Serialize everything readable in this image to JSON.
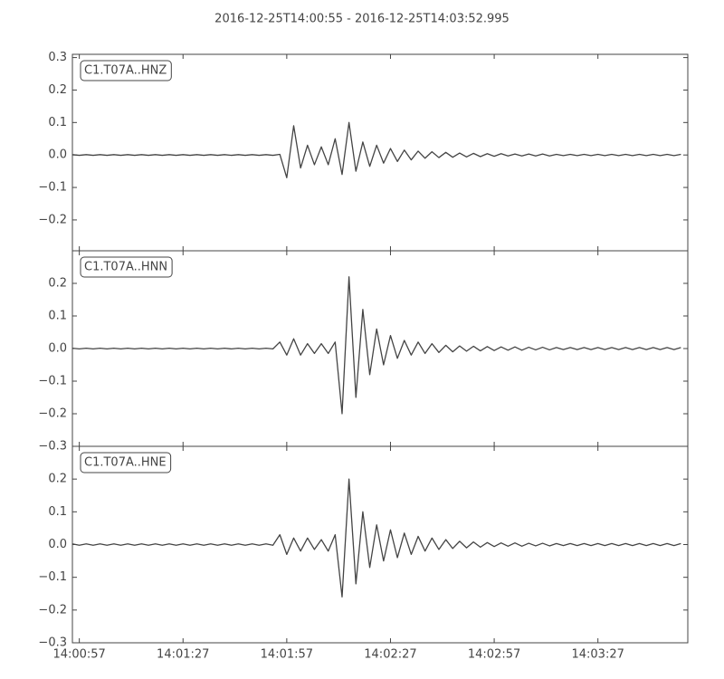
{
  "chart_data": {
    "type": "line",
    "title": "2016-12-25T14:00:55  -  2016-12-25T14:03:52.995",
    "x": [
      "14:00:55",
      "14:00:57",
      "14:00:59",
      "14:01:01",
      "14:01:03",
      "14:01:05",
      "14:01:07",
      "14:01:09",
      "14:01:11",
      "14:01:13",
      "14:01:15",
      "14:01:17",
      "14:01:19",
      "14:01:21",
      "14:01:23",
      "14:01:25",
      "14:01:27",
      "14:01:29",
      "14:01:31",
      "14:01:33",
      "14:01:35",
      "14:01:37",
      "14:01:39",
      "14:01:41",
      "14:01:43",
      "14:01:45",
      "14:01:47",
      "14:01:49",
      "14:01:51",
      "14:01:53",
      "14:01:55",
      "14:01:57",
      "14:01:59",
      "14:02:01",
      "14:02:03",
      "14:02:05",
      "14:02:07",
      "14:02:09",
      "14:02:11",
      "14:02:13",
      "14:02:15",
      "14:02:17",
      "14:02:19",
      "14:02:21",
      "14:02:23",
      "14:02:25",
      "14:02:27",
      "14:02:29",
      "14:02:31",
      "14:02:33",
      "14:02:35",
      "14:02:37",
      "14:02:39",
      "14:02:41",
      "14:02:43",
      "14:02:45",
      "14:02:47",
      "14:02:49",
      "14:02:51",
      "14:02:53",
      "14:02:55",
      "14:02:57",
      "14:02:59",
      "14:03:01",
      "14:03:03",
      "14:03:05",
      "14:03:07",
      "14:03:09",
      "14:03:11",
      "14:03:13",
      "14:03:15",
      "14:03:17",
      "14:03:19",
      "14:03:21",
      "14:03:23",
      "14:03:25",
      "14:03:27",
      "14:03:29",
      "14:03:31",
      "14:03:33",
      "14:03:35",
      "14:03:37",
      "14:03:39",
      "14:03:41",
      "14:03:43",
      "14:03:45",
      "14:03:47",
      "14:03:49",
      "14:03:51"
    ],
    "xlim": [
      "14:00:55",
      "14:03:52.995"
    ],
    "xticks": [
      "14:00:57",
      "14:01:27",
      "14:01:57",
      "14:02:27",
      "14:02:57",
      "14:03:27"
    ],
    "series": [
      {
        "name": "C1.T07A..HNZ",
        "color": "#444444",
        "ylim": [
          -0.295,
          0.31
        ],
        "yticks": [
          {
            "value": -0.2,
            "label": "−0.2"
          },
          {
            "value": -0.1,
            "label": "−0.1"
          },
          {
            "value": 0,
            "label": "0.0"
          },
          {
            "value": 0.1,
            "label": "0.1"
          },
          {
            "value": 0.2,
            "label": "0.2"
          },
          {
            "value": 0.3,
            "label": "0.3"
          }
        ],
        "values": [
          0.001,
          -0.001,
          0.001,
          -0.001,
          0.001,
          -0.001,
          0.001,
          -0.001,
          0.001,
          -0.001,
          0.001,
          -0.001,
          0.001,
          -0.001,
          0.001,
          -0.001,
          0.001,
          -0.001,
          0.001,
          -0.001,
          0.001,
          -0.001,
          0.001,
          -0.001,
          0.001,
          -0.001,
          0.001,
          -0.001,
          0.001,
          -0.001,
          0.002,
          -0.07,
          0.09,
          -0.04,
          0.03,
          -0.03,
          0.025,
          -0.03,
          0.05,
          -0.06,
          0.1,
          -0.05,
          0.04,
          -0.035,
          0.03,
          -0.025,
          0.02,
          -0.02,
          0.015,
          -0.015,
          0.012,
          -0.01,
          0.01,
          -0.008,
          0.008,
          -0.007,
          0.006,
          -0.006,
          0.005,
          -0.005,
          0.004,
          -0.004,
          0.004,
          -0.003,
          0.003,
          -0.003,
          0.003,
          -0.003,
          0.003,
          -0.003,
          0.002,
          -0.002,
          0.002,
          -0.002,
          0.002,
          -0.002,
          0.002,
          -0.002,
          0.002,
          -0.002,
          0.002,
          -0.002,
          0.002,
          -0.002,
          0.002,
          -0.002,
          0.002,
          -0.002,
          0.002
        ]
      },
      {
        "name": "C1.T07A..HNN",
        "color": "#444444",
        "ylim": [
          -0.3,
          0.3
        ],
        "yticks": [
          {
            "value": -0.3,
            "label": "−0.3"
          },
          {
            "value": -0.2,
            "label": "−0.2"
          },
          {
            "value": -0.1,
            "label": "−0.1"
          },
          {
            "value": 0,
            "label": "0.0"
          },
          {
            "value": 0.1,
            "label": "0.1"
          },
          {
            "value": 0.2,
            "label": "0.2"
          }
        ],
        "values": [
          0.001,
          -0.001,
          0.001,
          -0.001,
          0.001,
          -0.001,
          0.001,
          -0.001,
          0.001,
          -0.001,
          0.001,
          -0.001,
          0.001,
          -0.001,
          0.001,
          -0.001,
          0.001,
          -0.001,
          0.001,
          -0.001,
          0.001,
          -0.001,
          0.001,
          -0.001,
          0.001,
          -0.001,
          0.001,
          -0.001,
          0.001,
          -0.001,
          0.02,
          -0.02,
          0.03,
          -0.02,
          0.015,
          -0.015,
          0.015,
          -0.015,
          0.02,
          -0.2,
          0.22,
          -0.15,
          0.12,
          -0.08,
          0.06,
          -0.05,
          0.04,
          -0.03,
          0.025,
          -0.02,
          0.02,
          -0.015,
          0.015,
          -0.012,
          0.01,
          -0.01,
          0.008,
          -0.008,
          0.007,
          -0.007,
          0.006,
          -0.006,
          0.005,
          -0.005,
          0.005,
          -0.005,
          0.004,
          -0.004,
          0.004,
          -0.004,
          0.003,
          -0.003,
          0.003,
          -0.003,
          0.003,
          -0.003,
          0.003,
          -0.003,
          0.003,
          -0.003,
          0.003,
          -0.003,
          0.003,
          -0.003,
          0.003,
          -0.003,
          0.003,
          -0.003,
          0.003
        ]
      },
      {
        "name": "C1.T07A..HNE",
        "color": "#444444",
        "ylim": [
          -0.3,
          0.3
        ],
        "yticks": [
          {
            "value": -0.3,
            "label": "−0.3"
          },
          {
            "value": -0.2,
            "label": "−0.2"
          },
          {
            "value": -0.1,
            "label": "−0.1"
          },
          {
            "value": 0,
            "label": "0.0"
          },
          {
            "value": 0.1,
            "label": "0.1"
          },
          {
            "value": 0.2,
            "label": "0.2"
          }
        ],
        "values": [
          0.002,
          -0.002,
          0.002,
          -0.002,
          0.002,
          -0.002,
          0.002,
          -0.002,
          0.002,
          -0.002,
          0.002,
          -0.002,
          0.002,
          -0.002,
          0.002,
          -0.002,
          0.002,
          -0.002,
          0.002,
          -0.002,
          0.002,
          -0.002,
          0.002,
          -0.002,
          0.002,
          -0.002,
          0.002,
          -0.002,
          0.002,
          -0.002,
          0.03,
          -0.03,
          0.02,
          -0.02,
          0.02,
          -0.015,
          0.015,
          -0.02,
          0.03,
          -0.16,
          0.2,
          -0.12,
          0.1,
          -0.07,
          0.06,
          -0.05,
          0.045,
          -0.04,
          0.035,
          -0.03,
          0.025,
          -0.02,
          0.02,
          -0.015,
          0.015,
          -0.012,
          0.01,
          -0.01,
          0.008,
          -0.008,
          0.006,
          -0.006,
          0.005,
          -0.005,
          0.005,
          -0.005,
          0.004,
          -0.004,
          0.004,
          -0.004,
          0.003,
          -0.003,
          0.003,
          -0.003,
          0.003,
          -0.003,
          0.003,
          -0.003,
          0.003,
          -0.003,
          0.003,
          -0.003,
          0.003,
          -0.003,
          0.003,
          -0.003,
          0.003,
          -0.003,
          0.003
        ]
      }
    ]
  }
}
